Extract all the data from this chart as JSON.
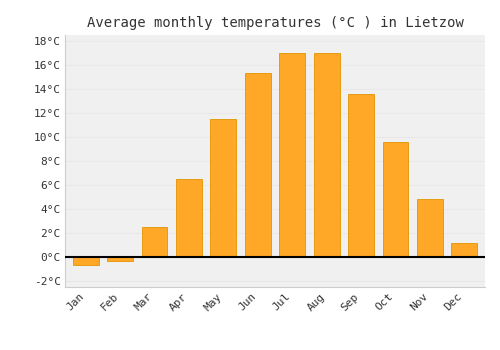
{
  "months": [
    "Jan",
    "Feb",
    "Mar",
    "Apr",
    "May",
    "Jun",
    "Jul",
    "Aug",
    "Sep",
    "Oct",
    "Nov",
    "Dec"
  ],
  "values": [
    -0.7,
    -0.3,
    2.5,
    6.5,
    11.5,
    15.3,
    17.0,
    17.0,
    13.6,
    9.6,
    4.8,
    1.2
  ],
  "bar_color": "#FFA726",
  "bar_edge_color": "#E59400",
  "title": "Average monthly temperatures (°C ) in Lietzow",
  "ylim": [
    -2.5,
    18.5
  ],
  "yticks": [
    -2,
    0,
    2,
    4,
    6,
    8,
    10,
    12,
    14,
    16,
    18
  ],
  "ytick_labels": [
    "-2°C",
    "0°C",
    "2°C",
    "4°C",
    "6°C",
    "8°C",
    "10°C",
    "12°C",
    "14°C",
    "16°C",
    "18°C"
  ],
  "background_color": "#ffffff",
  "plot_bg_color": "#f0f0f0",
  "grid_color": "#e8e8e8",
  "title_fontsize": 10,
  "tick_fontsize": 8,
  "bar_width": 0.75
}
